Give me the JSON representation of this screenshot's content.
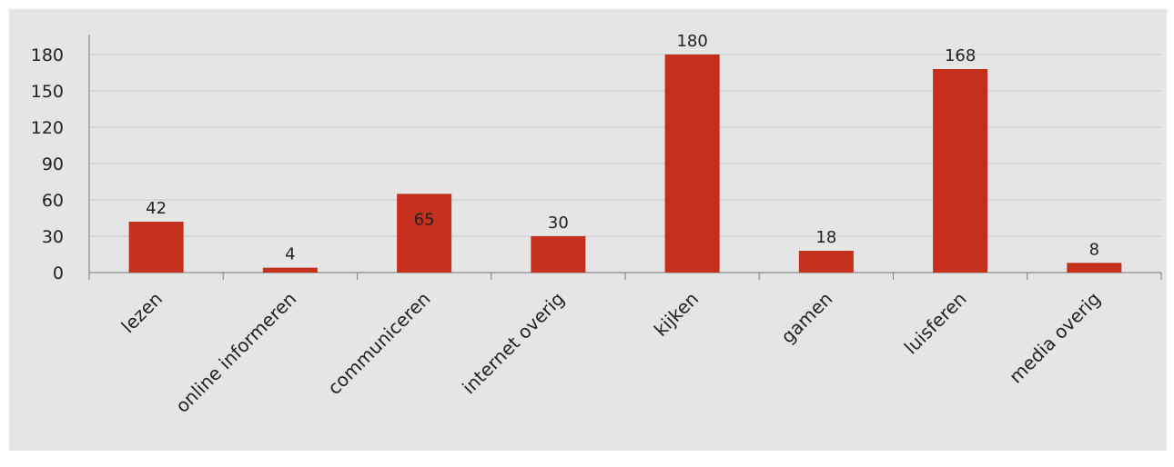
{
  "chart_data": {
    "type": "bar",
    "title": "",
    "xlabel": "",
    "ylabel": "",
    "categories": [
      "lezen",
      "online informeren",
      "communiceren",
      "internet overig",
      "kijken",
      "gamen",
      "luisferen",
      "media overig"
    ],
    "values": [
      42,
      4,
      65,
      30,
      180,
      18,
      168,
      8
    ],
    "data_labels": [
      "42",
      "4",
      "65",
      "30",
      "180",
      "18",
      "168",
      "8"
    ],
    "ylim": [
      0,
      195
    ],
    "yticks": [
      0,
      30,
      60,
      90,
      120,
      150,
      180
    ],
    "ytick_labels": [
      "0",
      "30",
      "60",
      "90",
      "120",
      "150",
      "180"
    ],
    "grid": true,
    "legend": "none",
    "colors": {
      "bar": "#c4301c",
      "background": "#e5e5e5",
      "grid": "#c8c8c8",
      "axis": "#8a8a8a"
    }
  }
}
